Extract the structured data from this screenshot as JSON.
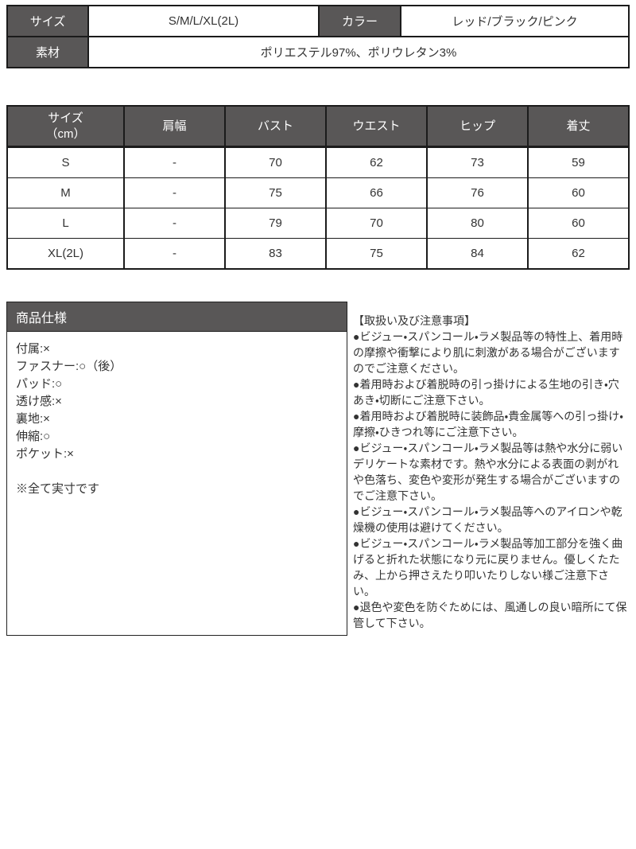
{
  "colors": {
    "header_bg": "#595757",
    "header_text": "#ffffff",
    "border": "#1b1b1b",
    "body_text": "#333333",
    "page_bg": "#ffffff"
  },
  "info_table": {
    "size_label": "サイズ",
    "size_value": "S/M/L/XL(2L)",
    "color_label": "カラー",
    "color_value": "レッド/ブラック/ピンク",
    "material_label": "素材",
    "material_value": "ポリエステル97%、ポリウレタン3%"
  },
  "size_table": {
    "header": {
      "title_line1": "サイズ",
      "title_line2": "（cm）",
      "cols": [
        "肩幅",
        "バスト",
        "ウエスト",
        "ヒップ",
        "着丈"
      ]
    },
    "rows": [
      {
        "size": "S",
        "values": [
          "-",
          "70",
          "62",
          "73",
          "59"
        ]
      },
      {
        "size": "M",
        "values": [
          "-",
          "75",
          "66",
          "76",
          "60"
        ]
      },
      {
        "size": "L",
        "values": [
          "-",
          "79",
          "70",
          "80",
          "60"
        ]
      },
      {
        "size": "XL(2L)",
        "values": [
          "-",
          "83",
          "75",
          "84",
          "62"
        ]
      }
    ]
  },
  "spec_box": {
    "title": "商品仕様",
    "items": [
      "付属:×",
      "ファスナー:○（後）",
      "パッド:○",
      "透け感:×",
      "裏地:×",
      "伸縮:○",
      "ポケット:×"
    ],
    "note": "※全て実寸です"
  },
  "precautions": {
    "title": "【取扱い及び注意事項】",
    "items": [
      "●ビジュー・スパンコール・ラメ製品等の特性上、着用時の摩擦や衝撃により肌に刺激がある場合がございますのでご注意ください。",
      "●着用時および着脱時の引っ掛けによる生地の引き・穴あき・切断にご注意下さい。",
      "●着用時および着脱時に装飾品・貴金属等への引っ掛け・摩擦・ひきつれ等にご注意下さい。",
      "●ビジュー・スパンコール・ラメ製品等は熱や水分に弱いデリケートな素材です。熱や水分による表面の剥がれや色落ち、変色や変形が発生する場合がございますのでご注意下さい。",
      "●ビジュー・スパンコール・ラメ製品等へのアイロンや乾燥機の使用は避けてください。",
      "●ビジュー・スパンコール・ラメ製品等加工部分を強く曲げると折れた状態になり元に戻りません。優しくたたみ、上から押さえたり叩いたりしない様ご注意下さい。",
      "●退色や変色を防ぐためには、風通しの良い暗所にて保管して下さい。"
    ]
  }
}
